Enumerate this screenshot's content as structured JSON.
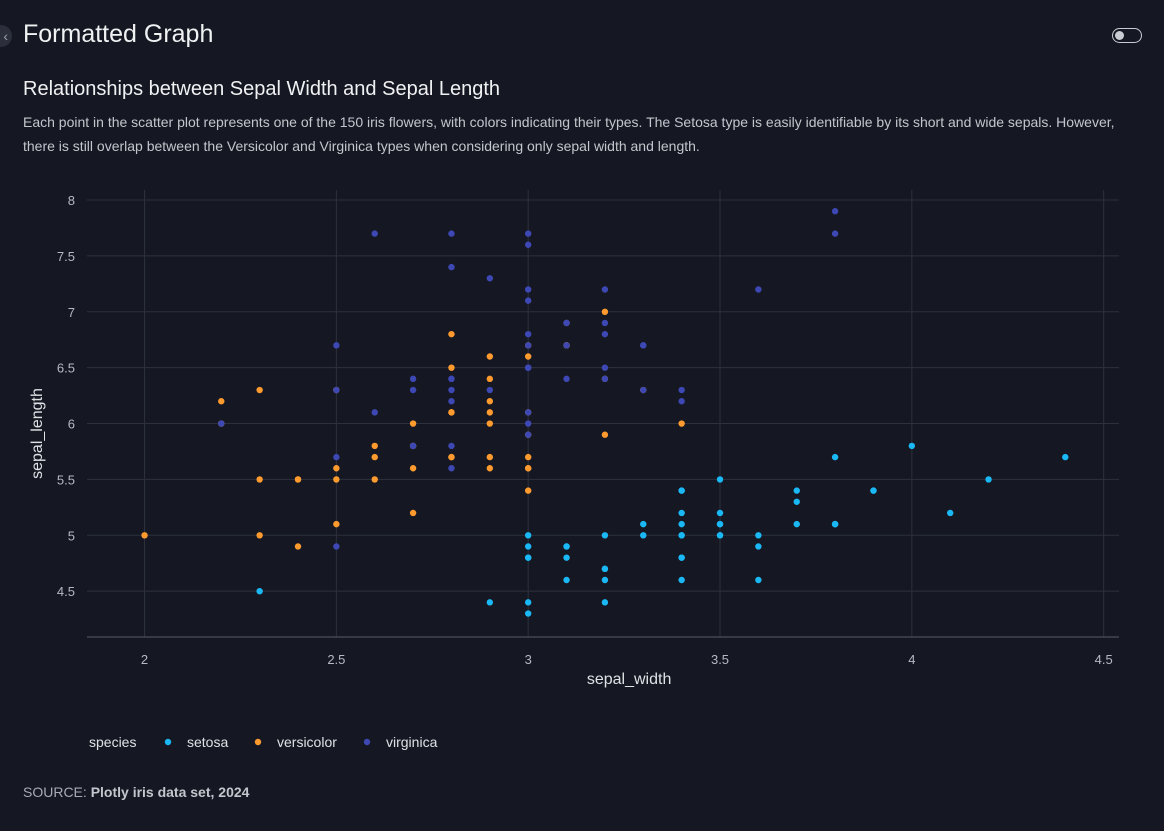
{
  "header": {
    "title": "Formatted Graph"
  },
  "chart_title": "Relationships between Sepal Width and Sepal Length",
  "chart_description": "Each point in the scatter plot represents one of the 150 iris flowers, with colors indicating their types. The Setosa type is easily identifiable by its short and wide sepals. However, there is still overlap between the Versicolor and Virginica types when considering only sepal width and length.",
  "source": {
    "prefix": "SOURCE: ",
    "text": "Plotly iris data set, 2024"
  },
  "chart_data": {
    "type": "scatter",
    "xlabel": "sepal_width",
    "ylabel": "sepal_length",
    "xlim": [
      1.85,
      4.54
    ],
    "ylim": [
      4.09,
      8.09
    ],
    "xticks": [
      2,
      2.5,
      3,
      3.5,
      4,
      4.5
    ],
    "yticks": [
      4.5,
      5,
      5.5,
      6,
      6.5,
      7,
      7.5,
      8
    ],
    "grid": true,
    "legend": {
      "title": "species",
      "placement": "bottom-left"
    },
    "series": [
      {
        "name": "setosa",
        "color": "#1ab8f5",
        "points": [
          [
            3.5,
            5.1
          ],
          [
            3.0,
            4.9
          ],
          [
            3.2,
            4.7
          ],
          [
            3.1,
            4.6
          ],
          [
            3.6,
            5.0
          ],
          [
            3.9,
            5.4
          ],
          [
            3.4,
            4.6
          ],
          [
            3.4,
            5.0
          ],
          [
            2.9,
            4.4
          ],
          [
            3.1,
            4.9
          ],
          [
            3.7,
            5.4
          ],
          [
            3.4,
            4.8
          ],
          [
            3.0,
            4.8
          ],
          [
            3.0,
            4.3
          ],
          [
            4.0,
            5.8
          ],
          [
            4.4,
            5.7
          ],
          [
            3.9,
            5.4
          ],
          [
            3.5,
            5.1
          ],
          [
            3.8,
            5.7
          ],
          [
            3.8,
            5.1
          ],
          [
            3.4,
            5.4
          ],
          [
            3.7,
            5.1
          ],
          [
            3.6,
            4.6
          ],
          [
            3.3,
            5.1
          ],
          [
            3.4,
            4.8
          ],
          [
            3.0,
            5.0
          ],
          [
            3.4,
            5.0
          ],
          [
            3.5,
            5.2
          ],
          [
            3.4,
            5.2
          ],
          [
            3.2,
            4.7
          ],
          [
            3.1,
            4.8
          ],
          [
            3.4,
            5.4
          ],
          [
            4.1,
            5.2
          ],
          [
            4.2,
            5.5
          ],
          [
            3.1,
            4.9
          ],
          [
            3.2,
            5.0
          ],
          [
            3.5,
            5.5
          ],
          [
            3.6,
            4.9
          ],
          [
            3.0,
            4.4
          ],
          [
            3.4,
            5.1
          ],
          [
            3.5,
            5.0
          ],
          [
            2.3,
            4.5
          ],
          [
            3.2,
            4.4
          ],
          [
            3.5,
            5.0
          ],
          [
            3.8,
            5.1
          ],
          [
            3.0,
            4.8
          ],
          [
            3.8,
            5.1
          ],
          [
            3.2,
            4.6
          ],
          [
            3.7,
            5.3
          ],
          [
            3.3,
            5.0
          ]
        ]
      },
      {
        "name": "versicolor",
        "color": "#ff9a2e",
        "points": [
          [
            3.2,
            7.0
          ],
          [
            3.2,
            6.4
          ],
          [
            3.1,
            6.9
          ],
          [
            2.3,
            5.5
          ],
          [
            2.8,
            6.5
          ],
          [
            2.8,
            5.7
          ],
          [
            3.3,
            6.3
          ],
          [
            2.4,
            4.9
          ],
          [
            2.9,
            6.6
          ],
          [
            2.7,
            5.2
          ],
          [
            2.0,
            5.0
          ],
          [
            3.0,
            5.9
          ],
          [
            2.2,
            6.0
          ],
          [
            2.9,
            6.1
          ],
          [
            2.9,
            5.6
          ],
          [
            3.1,
            6.7
          ],
          [
            3.0,
            5.6
          ],
          [
            2.7,
            5.8
          ],
          [
            2.2,
            6.2
          ],
          [
            2.5,
            5.6
          ],
          [
            3.2,
            5.9
          ],
          [
            2.8,
            6.1
          ],
          [
            2.5,
            6.3
          ],
          [
            2.8,
            6.1
          ],
          [
            2.9,
            6.4
          ],
          [
            3.0,
            6.6
          ],
          [
            2.8,
            6.8
          ],
          [
            3.0,
            6.7
          ],
          [
            2.9,
            6.0
          ],
          [
            2.6,
            5.7
          ],
          [
            2.4,
            5.5
          ],
          [
            2.4,
            5.5
          ],
          [
            2.7,
            5.8
          ],
          [
            2.7,
            6.0
          ],
          [
            3.0,
            5.4
          ],
          [
            3.4,
            6.0
          ],
          [
            3.1,
            6.7
          ],
          [
            2.3,
            6.3
          ],
          [
            3.0,
            5.6
          ],
          [
            2.5,
            5.5
          ],
          [
            2.6,
            5.5
          ],
          [
            3.0,
            6.1
          ],
          [
            2.6,
            5.8
          ],
          [
            2.3,
            5.0
          ],
          [
            2.7,
            5.6
          ],
          [
            3.0,
            5.7
          ],
          [
            2.9,
            5.7
          ],
          [
            2.9,
            6.2
          ],
          [
            2.5,
            5.1
          ],
          [
            2.8,
            5.7
          ]
        ]
      },
      {
        "name": "virginica",
        "color": "#3d48b4",
        "points": [
          [
            3.3,
            6.3
          ],
          [
            2.7,
            5.8
          ],
          [
            3.0,
            7.1
          ],
          [
            2.9,
            6.3
          ],
          [
            3.0,
            6.5
          ],
          [
            3.0,
            7.6
          ],
          [
            2.5,
            4.9
          ],
          [
            2.9,
            7.3
          ],
          [
            2.5,
            6.7
          ],
          [
            3.6,
            7.2
          ],
          [
            3.2,
            6.5
          ],
          [
            2.7,
            6.4
          ],
          [
            3.0,
            6.8
          ],
          [
            2.5,
            5.7
          ],
          [
            2.8,
            5.8
          ],
          [
            3.2,
            6.4
          ],
          [
            3.0,
            6.5
          ],
          [
            3.8,
            7.7
          ],
          [
            2.6,
            7.7
          ],
          [
            2.2,
            6.0
          ],
          [
            3.2,
            6.9
          ],
          [
            2.8,
            5.6
          ],
          [
            2.8,
            7.7
          ],
          [
            2.7,
            6.3
          ],
          [
            3.3,
            6.7
          ],
          [
            3.2,
            7.2
          ],
          [
            2.8,
            6.2
          ],
          [
            3.0,
            6.1
          ],
          [
            2.8,
            6.4
          ],
          [
            3.0,
            7.2
          ],
          [
            2.8,
            7.4
          ],
          [
            3.8,
            7.9
          ],
          [
            2.8,
            6.4
          ],
          [
            2.8,
            6.3
          ],
          [
            2.6,
            6.1
          ],
          [
            3.0,
            7.7
          ],
          [
            3.4,
            6.3
          ],
          [
            3.1,
            6.4
          ],
          [
            3.0,
            6.0
          ],
          [
            3.1,
            6.9
          ],
          [
            3.1,
            6.7
          ],
          [
            3.1,
            6.9
          ],
          [
            2.7,
            5.8
          ],
          [
            3.2,
            6.8
          ],
          [
            3.3,
            6.7
          ],
          [
            3.0,
            6.7
          ],
          [
            2.5,
            6.3
          ],
          [
            3.0,
            6.5
          ],
          [
            3.4,
            6.2
          ],
          [
            3.0,
            5.9
          ]
        ]
      }
    ]
  }
}
